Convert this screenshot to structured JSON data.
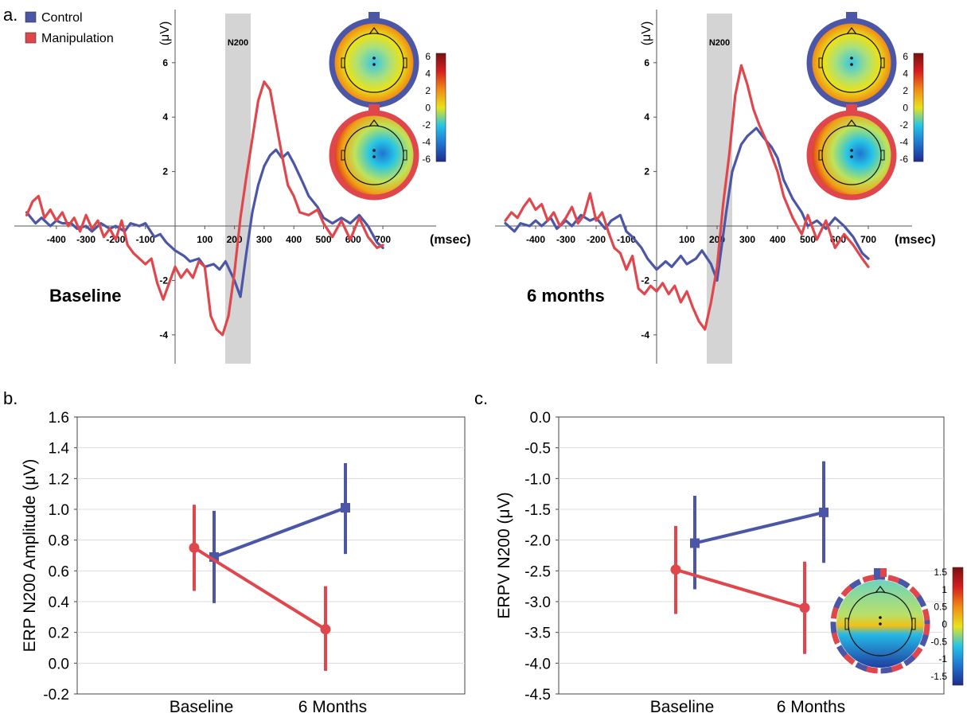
{
  "figure": {
    "panel_labels": [
      "a.",
      "b.",
      "c."
    ],
    "legend": {
      "control": {
        "label": "Control",
        "color": "#4b56a6"
      },
      "manipulation": {
        "label": "Manipulation",
        "color": "#e0474c"
      }
    },
    "colorbar_colors": [
      "#1f2b8c",
      "#1f74d0",
      "#26c4e6",
      "#e9e21a",
      "#f08a16",
      "#d61e1e",
      "#7a1010"
    ]
  },
  "chart_data": [
    {
      "type": "line",
      "panel": "a",
      "condition_label": "Baseline",
      "ylabel": "(μV)",
      "xlabel": "(msec)",
      "x_ticks": [
        -400,
        -300,
        -200,
        -100,
        100,
        200,
        300,
        400,
        500,
        600,
        700
      ],
      "y_ticks": [
        -4,
        -2,
        2,
        4,
        6
      ],
      "xlim": [
        -500,
        700
      ],
      "ylim": [
        -5,
        8
      ],
      "highlight": {
        "label": "N200",
        "range": [
          150,
          240
        ]
      },
      "colorbar_ticks": [
        "6",
        "4",
        "2",
        "0",
        "-2",
        "-4",
        "-6"
      ],
      "series": [
        {
          "name": "Control",
          "x": [
            -500,
            -470,
            -450,
            -420,
            -400,
            -380,
            -350,
            -330,
            -300,
            -280,
            -250,
            -220,
            -200,
            -170,
            -150,
            -120,
            -100,
            -70,
            -50,
            -30,
            0,
            30,
            50,
            80,
            100,
            130,
            150,
            170,
            200,
            220,
            240,
            260,
            280,
            300,
            320,
            340,
            360,
            380,
            400,
            430,
            450,
            480,
            500,
            530,
            560,
            590,
            620,
            650,
            680,
            700
          ],
          "y": [
            0.5,
            0.1,
            0.3,
            0.0,
            0.2,
            0.1,
            0.1,
            -0.1,
            0.0,
            -0.2,
            0.1,
            -0.1,
            0.0,
            -0.2,
            0.1,
            0.0,
            0.1,
            -0.4,
            -0.3,
            -0.6,
            -0.9,
            -1.1,
            -1.3,
            -1.2,
            -1.5,
            -1.4,
            -1.6,
            -1.3,
            -2.0,
            -2.6,
            -1.0,
            0.5,
            1.5,
            2.2,
            2.6,
            2.8,
            2.5,
            2.7,
            2.3,
            1.6,
            1.1,
            0.7,
            0.3,
            0.1,
            0.3,
            0.1,
            0.4,
            0.0,
            -0.6,
            -0.8
          ]
        },
        {
          "name": "Manipulation",
          "x": [
            -500,
            -480,
            -460,
            -440,
            -420,
            -400,
            -380,
            -360,
            -340,
            -320,
            -300,
            -280,
            -260,
            -240,
            -220,
            -200,
            -180,
            -160,
            -140,
            -120,
            -100,
            -80,
            -60,
            -40,
            -20,
            0,
            20,
            40,
            60,
            80,
            100,
            120,
            140,
            160,
            180,
            200,
            220,
            240,
            260,
            280,
            300,
            320,
            340,
            360,
            380,
            400,
            420,
            450,
            480,
            500,
            530,
            560,
            590,
            620,
            650,
            680,
            700
          ],
          "y": [
            0.4,
            0.9,
            1.1,
            0.3,
            0.6,
            0.2,
            0.5,
            0.0,
            0.3,
            -0.2,
            0.4,
            -0.1,
            0.2,
            -0.4,
            -0.1,
            -0.5,
            0.2,
            -0.7,
            -1.0,
            -1.2,
            -1.4,
            -1.2,
            -2.1,
            -2.7,
            -2.1,
            -1.5,
            -1.9,
            -1.6,
            -1.9,
            -1.3,
            -1.5,
            -3.3,
            -3.8,
            -4.0,
            -3.3,
            -1.7,
            0.3,
            1.8,
            3.2,
            4.6,
            5.3,
            5.0,
            3.8,
            2.6,
            1.5,
            1.1,
            0.5,
            0.4,
            0.6,
            0.1,
            -0.4,
            0.2,
            -0.5,
            0.3,
            -0.4,
            -0.8,
            -0.7
          ]
        }
      ]
    },
    {
      "type": "line",
      "panel": "a",
      "condition_label": "6 months",
      "ylabel": "(μV)",
      "xlabel": "(msec)",
      "x_ticks": [
        -400,
        -300,
        -200,
        -100,
        100,
        200,
        300,
        400,
        500,
        600,
        700
      ],
      "y_ticks": [
        -4,
        -2,
        2,
        4,
        6
      ],
      "xlim": [
        -500,
        700
      ],
      "ylim": [
        -5,
        8
      ],
      "highlight": {
        "label": "N200",
        "range": [
          150,
          240
        ]
      },
      "colorbar_ticks": [
        "6",
        "4",
        "2",
        "0",
        "-2",
        "-4",
        "-6"
      ],
      "series": [
        {
          "name": "Control",
          "x": [
            -500,
            -470,
            -450,
            -420,
            -400,
            -380,
            -350,
            -330,
            -300,
            -280,
            -250,
            -220,
            -200,
            -170,
            -150,
            -120,
            -100,
            -80,
            -50,
            -30,
            0,
            30,
            50,
            80,
            100,
            130,
            150,
            180,
            200,
            230,
            250,
            280,
            300,
            330,
            350,
            380,
            400,
            420,
            450,
            480,
            500,
            530,
            560,
            590,
            620,
            650,
            680,
            700
          ],
          "y": [
            0.1,
            -0.2,
            0.1,
            0.0,
            0.2,
            0.0,
            0.3,
            -0.1,
            0.2,
            0.0,
            0.4,
            0.2,
            0.3,
            -0.1,
            0.2,
            0.4,
            -0.2,
            -0.4,
            -0.8,
            -1.2,
            -1.6,
            -1.3,
            -1.5,
            -1.1,
            -1.4,
            -1.2,
            -0.9,
            -1.4,
            -2.0,
            0.5,
            2.0,
            3.0,
            3.3,
            3.6,
            3.3,
            2.9,
            2.5,
            1.7,
            1.0,
            0.5,
            0.0,
            0.2,
            -0.1,
            0.3,
            0.0,
            -0.4,
            -1.0,
            -1.2
          ]
        },
        {
          "name": "Manipulation",
          "x": [
            -500,
            -480,
            -460,
            -440,
            -420,
            -400,
            -380,
            -360,
            -340,
            -320,
            -300,
            -280,
            -260,
            -240,
            -220,
            -200,
            -180,
            -160,
            -140,
            -120,
            -100,
            -80,
            -60,
            -40,
            -20,
            0,
            20,
            40,
            60,
            80,
            100,
            120,
            140,
            160,
            180,
            200,
            220,
            240,
            260,
            280,
            300,
            320,
            340,
            360,
            380,
            400,
            420,
            450,
            480,
            500,
            530,
            560,
            590,
            620,
            650,
            680,
            700
          ],
          "y": [
            0.2,
            0.5,
            0.3,
            0.7,
            1.0,
            0.6,
            0.8,
            0.2,
            0.5,
            0.0,
            0.3,
            0.7,
            0.1,
            0.4,
            1.2,
            0.2,
            0.5,
            -0.2,
            -0.8,
            -1.0,
            -1.6,
            -1.1,
            -2.3,
            -2.5,
            -2.2,
            -2.4,
            -2.1,
            -2.5,
            -2.2,
            -2.8,
            -2.4,
            -3.0,
            -3.5,
            -3.8,
            -2.8,
            -1.5,
            0.8,
            2.6,
            4.8,
            5.9,
            5.2,
            4.3,
            3.7,
            3.2,
            2.6,
            2.0,
            1.1,
            0.3,
            -0.3,
            0.4,
            -0.5,
            0.2,
            -0.8,
            -0.3,
            -0.7,
            -1.2,
            -1.5
          ]
        }
      ]
    },
    {
      "type": "line",
      "panel": "b",
      "categories": [
        "Baseline",
        "6 Months"
      ],
      "ylabel": "ERP N200 Amplitude (μV)",
      "ylim": [
        -0.2,
        1.6
      ],
      "y_ticks": [
        "-0.2",
        "0.0",
        "0.2",
        "0.4",
        "0.6",
        "0.8",
        "1.0",
        "1.2",
        "1.4",
        "1.6"
      ],
      "series": [
        {
          "name": "Control",
          "values": [
            0.69,
            1.01
          ],
          "err_low": [
            0.39,
            0.71
          ],
          "err_high": [
            0.99,
            1.3
          ]
        },
        {
          "name": "Manipulation",
          "values": [
            0.75,
            0.22
          ],
          "err_low": [
            0.47,
            -0.05
          ],
          "err_high": [
            1.03,
            0.5
          ]
        }
      ]
    },
    {
      "type": "line",
      "panel": "c",
      "categories": [
        "Baseline",
        "6 Months"
      ],
      "ylabel": "ERPV N200 (μV)",
      "ylim": [
        -4.5,
        0.0
      ],
      "y_ticks": [
        "0.0",
        "-0.5",
        "-1.0",
        "-1.5",
        "-2.0",
        "-2.5",
        "-3.0",
        "-3.5",
        "-4.0",
        "-4.5"
      ],
      "colorbar_ticks": [
        "1.5",
        "1",
        "0.5",
        "0",
        "-0.5",
        "-1",
        "-1.5"
      ],
      "series": [
        {
          "name": "Control",
          "values": [
            -2.05,
            -1.55
          ],
          "err_low": [
            -2.8,
            -2.37
          ],
          "err_high": [
            -1.28,
            -0.72
          ]
        },
        {
          "name": "Manipulation",
          "values": [
            -2.48,
            -3.1
          ],
          "err_low": [
            -3.2,
            -3.85
          ],
          "err_high": [
            -1.77,
            -2.35
          ]
        }
      ]
    }
  ]
}
